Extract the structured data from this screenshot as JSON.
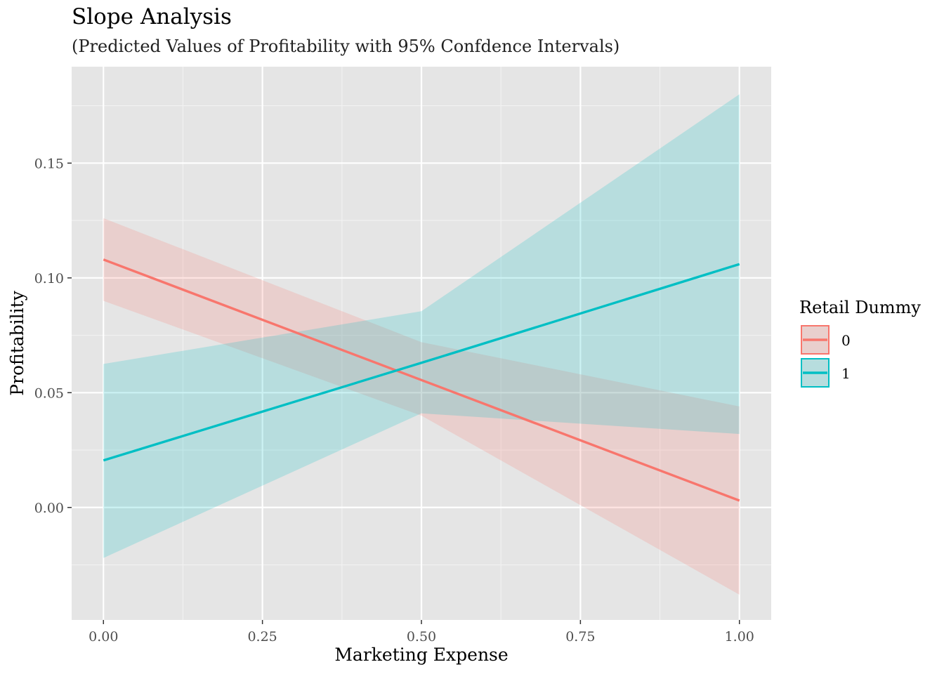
{
  "chart_data": {
    "type": "line",
    "title": "Slope Analysis",
    "subtitle": "(Predicted Values of Profitability with 95% Confdence Intervals)",
    "xlabel": "Marketing Expense",
    "ylabel": "Profitability",
    "xlim": [
      -0.05,
      1.05
    ],
    "ylim": [
      -0.049,
      0.192
    ],
    "x_ticks": [
      0,
      0.25,
      0.5,
      0.75,
      1
    ],
    "x_tick_labels": [
      "0.00",
      "0.25",
      "0.50",
      "0.75",
      "1.00"
    ],
    "y_ticks": [
      0,
      0.05,
      0.1,
      0.15
    ],
    "y_tick_labels": [
      "0.00",
      "0.05",
      "0.10",
      "0.15"
    ],
    "grid": true,
    "legend": {
      "title": "Retail Dummy",
      "position": "right"
    },
    "series": [
      {
        "name": "0",
        "color": "#F8766D",
        "x": [
          0,
          0.5,
          1
        ],
        "y": [
          0.108,
          0.0555,
          0.003
        ],
        "lower": [
          0.09,
          0.04,
          -0.038
        ],
        "upper": [
          0.126,
          0.072,
          0.044
        ]
      },
      {
        "name": "1",
        "color": "#00BFC4",
        "x": [
          0,
          0.5,
          1
        ],
        "y": [
          0.0205,
          0.063,
          0.106
        ],
        "lower": [
          -0.022,
          0.041,
          0.032
        ],
        "upper": [
          0.0625,
          0.0855,
          0.18
        ]
      }
    ]
  }
}
